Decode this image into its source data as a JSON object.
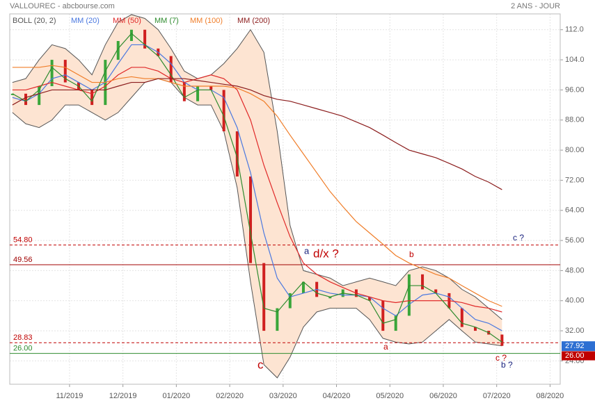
{
  "chart_data": {
    "type": "line",
    "title": "VALLOUREC - abcbourse.com",
    "period": "2 ANS - JOUR",
    "x": [
      -1.07,
      -0.82,
      -0.57,
      -0.33,
      -0.08,
      0.17,
      0.42,
      0.67,
      0.91,
      1.16,
      1.41,
      1.66,
      1.9,
      2.15,
      2.4,
      2.65,
      2.89,
      3.14,
      3.39,
      3.64,
      3.89,
      4.13,
      4.38,
      4.63,
      4.88,
      5.12,
      5.37,
      5.62,
      5.87,
      6.11,
      6.36,
      6.61,
      6.86,
      7.11,
      7.35,
      7.6,
      7.85,
      8.1
    ],
    "xlim": [
      -1.12,
      9.19
    ],
    "xticks": [
      {
        "value": 0,
        "label": "11/2019"
      },
      {
        "value": 1,
        "label": "12/2019"
      },
      {
        "value": 2,
        "label": "01/2020"
      },
      {
        "value": 3,
        "label": "02/2020"
      },
      {
        "value": 4,
        "label": "03/2020"
      },
      {
        "value": 5,
        "label": "04/2020"
      },
      {
        "value": 6,
        "label": "05/2020"
      },
      {
        "value": 7,
        "label": "06/2020"
      },
      {
        "value": 8,
        "label": "07/2020"
      },
      {
        "value": 9,
        "label": "08/2020"
      }
    ],
    "ylim": [
      17.8,
      116.2
    ],
    "yticks": [
      {
        "value": 24,
        "label": "24.00"
      },
      {
        "value": 32,
        "label": "32.00"
      },
      {
        "value": 40,
        "label": "40.00"
      },
      {
        "value": 48,
        "label": "48.00"
      },
      {
        "value": 56,
        "label": "56.00"
      },
      {
        "value": 64,
        "label": "64.00"
      },
      {
        "value": 72,
        "label": "72.00"
      },
      {
        "value": 80,
        "label": "80.00"
      },
      {
        "value": 88,
        "label": "88.00"
      },
      {
        "value": 96,
        "label": "96.00"
      },
      {
        "value": 104,
        "label": "104.0"
      },
      {
        "value": 112,
        "label": "112.0"
      }
    ],
    "grid": true,
    "bands": {
      "name": "BOLL (20, 2)",
      "color": "#555555",
      "fill": "#fde4d2",
      "upper": [
        98,
        99,
        104,
        108,
        107,
        104,
        100,
        108,
        114,
        116,
        115,
        112,
        107,
        101,
        99,
        100,
        103,
        107,
        112,
        106,
        85,
        60,
        48,
        47,
        46,
        44,
        45,
        46,
        45,
        44,
        48,
        49,
        48,
        46,
        43,
        41,
        38,
        35
      ],
      "lower": [
        90,
        87,
        86,
        88,
        92,
        92,
        90,
        88,
        90,
        94,
        98,
        99,
        98,
        94,
        92,
        92,
        85,
        70,
        45,
        23,
        19.5,
        25,
        33,
        37,
        38,
        38,
        38,
        35,
        30,
        29,
        28.5,
        29,
        32,
        35,
        32,
        29,
        28.5,
        28
      ]
    },
    "series": [
      {
        "name": "MM (20)",
        "color": "#4a78e0",
        "values": [
          94,
          93,
          95,
          99,
          100,
          98,
          96,
          98,
          103,
          108,
          108,
          106,
          103,
          98,
          96,
          96,
          94,
          86,
          74,
          58,
          46,
          41,
          42,
          43,
          42,
          41.5,
          41.5,
          41,
          38,
          36,
          39,
          41.5,
          42,
          41,
          38,
          35,
          34,
          32
        ]
      },
      {
        "name": "MM (50)",
        "color": "#e02828",
        "values": [
          96,
          96,
          97,
          98,
          97,
          96,
          95,
          97,
          100,
          102,
          102,
          101,
          99,
          98,
          99,
          100,
          99,
          96,
          88,
          76,
          66,
          57,
          50,
          47,
          45,
          43.5,
          42,
          41,
          40,
          39.5,
          40,
          40,
          40,
          40,
          39.5,
          38.5,
          38,
          37
        ]
      },
      {
        "name": "MM (7)",
        "color": "#2e8b2e",
        "values": [
          95,
          93,
          96,
          102,
          99,
          97,
          93,
          101,
          107,
          111,
          108,
          105,
          100,
          94,
          96,
          96,
          89,
          78,
          58,
          38,
          37,
          41,
          45,
          42,
          41,
          42,
          41.5,
          40,
          34,
          35,
          44,
          44,
          42,
          38,
          34,
          33,
          31.5,
          29
        ]
      },
      {
        "name": "MM (100)",
        "color": "#f07d28",
        "values": [
          102,
          102,
          102,
          102.5,
          102,
          100,
          98,
          98,
          99,
          99.5,
          99,
          99,
          98,
          97,
          97,
          97,
          97,
          96.5,
          95,
          93,
          89,
          84,
          79,
          74,
          69,
          65,
          61,
          58,
          55,
          52,
          50,
          48.5,
          47,
          46,
          44,
          42,
          40,
          38.5
        ]
      },
      {
        "name": "MM (200)",
        "color": "#8b1c1c",
        "values": [
          92,
          94,
          95,
          96,
          96,
          96,
          96,
          96,
          97,
          98,
          98,
          99,
          99,
          99,
          98.5,
          98,
          97.5,
          97,
          96,
          94.5,
          93.5,
          93,
          92,
          91,
          90,
          89,
          87.5,
          86,
          84,
          82,
          80,
          79,
          78,
          76.5,
          75,
          73,
          71.5,
          69.5
        ]
      }
    ],
    "price": {
      "up_color": "#3aa63a",
      "down_color": "#d02020",
      "values": [
        95,
        92,
        97,
        104,
        98,
        96,
        92,
        104,
        109,
        112,
        107,
        105,
        98,
        93,
        97,
        96,
        85,
        73,
        50,
        32,
        38,
        42,
        45,
        41,
        41,
        43,
        41,
        40,
        32,
        36,
        47,
        43,
        42,
        38,
        33,
        32,
        31,
        28
      ]
    },
    "levels": [
      {
        "value": 54.8,
        "label": "54.80",
        "color": "#c00000",
        "dashed": true
      },
      {
        "value": 49.56,
        "color": "#a00000",
        "dashed": false
      },
      {
        "value": 28.83,
        "label": "28.83",
        "color": "#c00000",
        "dashed": true
      },
      {
        "value": 26,
        "label": "26.00",
        "color": "#2e8b2e",
        "dashed": false,
        "box_color": "#c00000"
      }
    ],
    "last_price": {
      "value": 27.92,
      "label": "27.92",
      "color": "#2d6fd2"
    },
    "annotations": [
      {
        "text": "a",
        "color": "#1a237e"
      },
      {
        "text": "d/x ?",
        "color": "#c00000"
      },
      {
        "text": "b",
        "color": "#c00000"
      },
      {
        "text": "c ?",
        "color": "#1a237e"
      },
      {
        "text": "a",
        "color": "#c00000"
      },
      {
        "text": "c",
        "color": "#c00000"
      },
      {
        "text": "c ?",
        "color": "#c00000"
      },
      {
        "text": "b ?",
        "color": "#1a237e"
      }
    ]
  }
}
